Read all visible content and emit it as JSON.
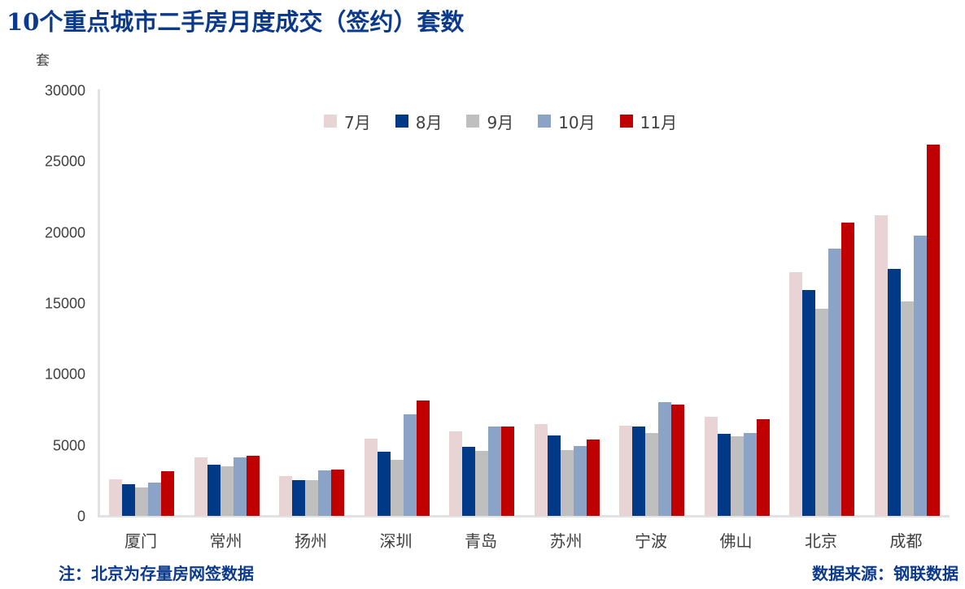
{
  "header": {
    "title": "10个重点城市二手房月度成交（签约）套数",
    "unit_label": "套"
  },
  "legend": [
    {
      "label": "7月",
      "color": "#E8D4D4"
    },
    {
      "label": "8月",
      "color": "#003A87"
    },
    {
      "label": "9月",
      "color": "#BFBFBF"
    },
    {
      "label": "10月",
      "color": "#8BA3C7"
    },
    {
      "label": "11月",
      "color": "#C00000"
    }
  ],
  "y_axis": {
    "ticks": [
      "30000",
      "25000",
      "20000",
      "15000",
      "10000",
      "5000",
      "0"
    ]
  },
  "footer": {
    "note": "注：北京为存量房网签数据",
    "source": "数据来源：钢联数据"
  },
  "chart_data": {
    "type": "bar",
    "title": "10个重点城市二手房月度成交（签约）套数",
    "xlabel": "",
    "ylabel": "套",
    "ylim": [
      0,
      30000
    ],
    "yticks": [
      0,
      5000,
      10000,
      15000,
      20000,
      25000,
      30000
    ],
    "grid": false,
    "legend_position": "top",
    "categories": [
      "厦门",
      "常州",
      "扬州",
      "深圳",
      "青岛",
      "苏州",
      "宁波",
      "佛山",
      "北京",
      "成都"
    ],
    "series": [
      {
        "name": "7月",
        "color": "#E8D4D4",
        "values": [
          2580,
          4120,
          2800,
          5440,
          5950,
          6470,
          6350,
          6980,
          17230,
          21240
        ]
      },
      {
        "name": "8月",
        "color": "#003A87",
        "values": [
          2230,
          3610,
          2520,
          4520,
          4870,
          5670,
          6300,
          5780,
          15970,
          17460
        ]
      },
      {
        "name": "9月",
        "color": "#BFBFBF",
        "values": [
          2000,
          3490,
          2520,
          3950,
          4580,
          4640,
          5840,
          5610,
          14600,
          15170
        ]
      },
      {
        "name": "10月",
        "color": "#8BA3C7",
        "values": [
          2350,
          4120,
          3210,
          7160,
          6300,
          4920,
          8010,
          5840,
          18890,
          19810
        ]
      },
      {
        "name": "11月",
        "color": "#C00000",
        "values": [
          3150,
          4240,
          3260,
          8130,
          6300,
          5380,
          7840,
          6810,
          20720,
          26220
        ]
      }
    ]
  }
}
